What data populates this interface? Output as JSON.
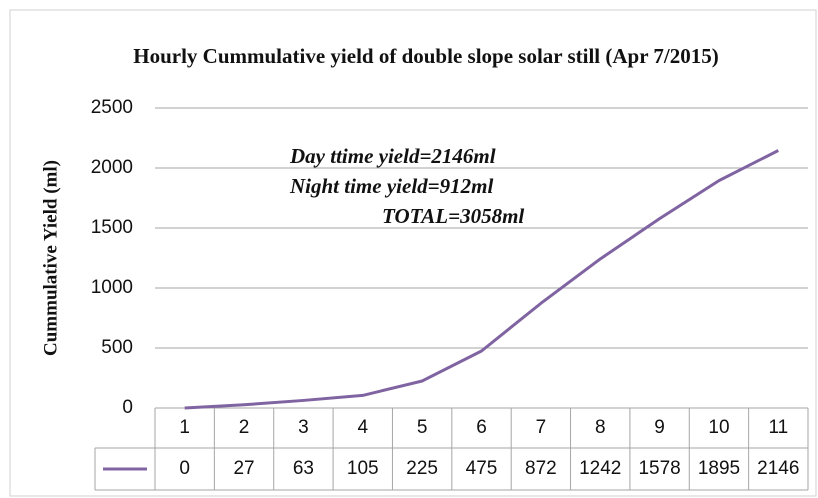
{
  "chart_data": {
    "type": "line",
    "title": "Hourly  Cummulative  yield of double  slope solar still (Apr  7/2015)",
    "y_label": "Cummulative  Yield (ml)",
    "annotations": [
      "Day ttime yield=2146ml",
      "Night time yield=912ml",
      "TOTAL=3058ml"
    ],
    "categories": [
      "1",
      "2",
      "3",
      "4",
      "5",
      "6",
      "7",
      "8",
      "9",
      "10",
      "11"
    ],
    "values": [
      0,
      27,
      63,
      105,
      225,
      475,
      872,
      1242,
      1578,
      1895,
      2146
    ],
    "color": "#8064a2",
    "ylim": [
      0,
      2500
    ],
    "yticks": [
      0,
      500,
      1000,
      1500,
      2000,
      2500
    ],
    "grid": true
  }
}
